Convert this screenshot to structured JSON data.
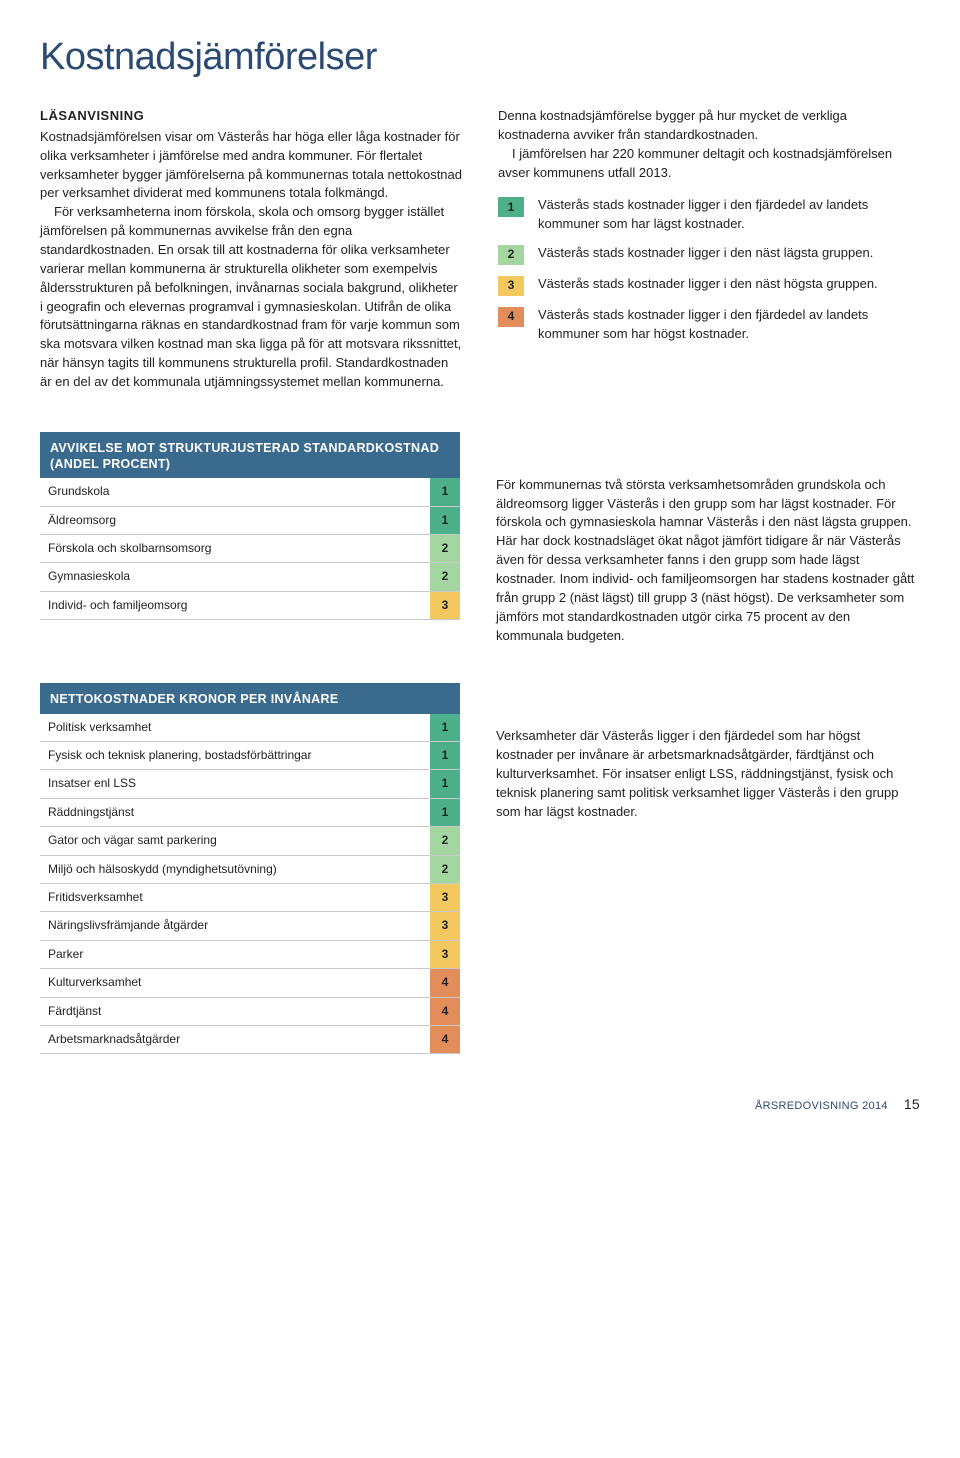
{
  "colors": {
    "heading": "#2b4a73",
    "table_header_bg": "#3b6a8f",
    "group1": "#4db08a",
    "group2": "#a4d7a0",
    "group3": "#f3c95f",
    "group4": "#e28d5a",
    "row_border": "#c9c9c9"
  },
  "title": "Kostnadsjämförelser",
  "lead": {
    "label": "LÄSANVISNING",
    "left_paragraphs": [
      "Kostnadsjämförelsen visar om Västerås har höga eller låga kostnader för olika verksamheter i jämförelse med andra kommuner. För flertalet verksamheter bygger jämförelserna på kommunernas totala nettokostnad per verksamhet dividerat med kommunens totala folkmängd.",
      "För verksamheterna inom förskola, skola och omsorg bygger istället jämförelsen på kommunernas avvikelse från den egna standardkostnaden. En orsak till att kostnaderna för olika verksamheter varierar mellan kommunerna är strukturella olikheter som exempelvis åldersstrukturen på befolkningen, invånarnas sociala bakgrund, olikheter i geografin och elevernas programval i gymnasieskolan. Utifrån de olika förutsättningarna räknas en standardkostnad fram för varje kommun som ska motsvara vilken kostnad man ska ligga på för att motsvara rikssnittet, när hänsyn tagits till kommunens strukturella profil. Standardkostnaden är en del av det kommunala utjämningssystemet mellan kommunerna."
    ],
    "right_intro": [
      "Denna kostnadsjämförelse bygger på hur mycket de verkliga kostnaderna avviker från standardkostnaden.",
      "I jämförelsen har 220 kommuner deltagit och kostnadsjämförelsen avser kommunens utfall 2013."
    ],
    "legend": [
      {
        "n": "1",
        "color": "#4db08a",
        "text": "Västerås stads kostnader ligger i den fjärdedel av landets kommuner som har lägst kostnader."
      },
      {
        "n": "2",
        "color": "#a4d7a0",
        "text": "Västerås stads kostnader ligger i den näst lägsta gruppen."
      },
      {
        "n": "3",
        "color": "#f3c95f",
        "text": "Västerås stads kostnader ligger i den näst högsta gruppen."
      },
      {
        "n": "4",
        "color": "#e28d5a",
        "text": "Västerås stads kostnader ligger i den fjärdedel av landets kommuner som har högst kostnader."
      }
    ]
  },
  "section1": {
    "header": "AVVIKELSE MOT STRUKTURJUSTERAD STANDARDKOSTNAD (ANDEL PROCENT)",
    "rows": [
      {
        "label": "Grundskola",
        "n": "1",
        "color": "#4db08a"
      },
      {
        "label": "Äldreomsorg",
        "n": "1",
        "color": "#4db08a"
      },
      {
        "label": "Förskola och skolbarnsomsorg",
        "n": "2",
        "color": "#a4d7a0"
      },
      {
        "label": "Gymnasieskola",
        "n": "2",
        "color": "#a4d7a0"
      },
      {
        "label": "Individ- och familjeomsorg",
        "n": "3",
        "color": "#f3c95f"
      }
    ],
    "paragraph": "För kommunernas två största verksamhetsområden grundskola och äldreomsorg ligger Västerås i den grupp som har lägst kostnader. För förskola och gymnasieskola hamnar Västerås i den näst lägsta gruppen. Här har dock kostnadsläget ökat något jämfört tidigare år när Västerås även för dessa verksamheter fanns i den grupp som hade lägst kostnader. Inom individ- och familjeomsorgen har stadens kostnader gått från grupp 2 (näst lägst) till grupp 3 (näst högst). De verksamheter som jämförs mot standardkostnaden utgör cirka 75 procent av den kommunala budgeten."
  },
  "section2": {
    "header": "NETTOKOSTNADER KRONOR PER INVÅNARE",
    "rows": [
      {
        "label": "Politisk verksamhet",
        "n": "1",
        "color": "#4db08a"
      },
      {
        "label": "Fysisk och teknisk planering, bostadsförbättringar",
        "n": "1",
        "color": "#4db08a"
      },
      {
        "label": "Insatser enl LSS",
        "n": "1",
        "color": "#4db08a"
      },
      {
        "label": "Räddningstjänst",
        "n": "1",
        "color": "#4db08a"
      },
      {
        "label": "Gator och vägar samt parkering",
        "n": "2",
        "color": "#a4d7a0"
      },
      {
        "label": "Miljö och hälsoskydd (myndighetsutövning)",
        "n": "2",
        "color": "#a4d7a0"
      },
      {
        "label": "Fritidsverksamhet",
        "n": "3",
        "color": "#f3c95f"
      },
      {
        "label": "Näringslivsfrämjande åtgärder",
        "n": "3",
        "color": "#f3c95f"
      },
      {
        "label": "Parker",
        "n": "3",
        "color": "#f3c95f"
      },
      {
        "label": "Kulturverksamhet",
        "n": "4",
        "color": "#e28d5a"
      },
      {
        "label": "Färdtjänst",
        "n": "4",
        "color": "#e28d5a"
      },
      {
        "label": "Arbetsmarknadsåtgärder",
        "n": "4",
        "color": "#e28d5a"
      }
    ],
    "paragraph": "Verksamheter där Västerås ligger i den fjärdedel som har högst kostnader per invånare är arbetsmarknadsåtgärder, färdtjänst och kulturverksamhet. För insatser enligt LSS, räddningstjänst, fysisk och teknisk planering samt politisk verksamhet ligger Västerås i den grupp som har lägst kostnader."
  },
  "footer": {
    "label": "ÅRSREDOVISNING 2014",
    "page": "15"
  }
}
